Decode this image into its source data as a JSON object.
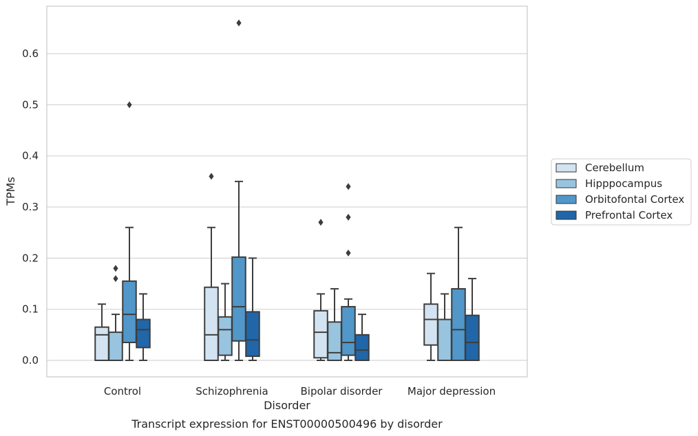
{
  "chart_data": {
    "type": "box",
    "caption": "Transcript expression for ENST00000500496 by disorder",
    "xlabel": "Disorder",
    "ylabel": "TPMs",
    "ylim": [
      -0.032,
      0.695
    ],
    "yticks": [
      "0.0",
      "0.1",
      "0.2",
      "0.3",
      "0.4",
      "0.5",
      "0.6"
    ],
    "grid": "horizontal",
    "legend_position": "right",
    "categories": [
      "Control",
      "Schizophrenia",
      "Bipolar disorder",
      "Major depression"
    ],
    "series": [
      {
        "name": "Cerebellum",
        "color": "#d3e3f1",
        "boxes": [
          {
            "whislo": 0.0,
            "q1": 0.0,
            "med": 0.05,
            "q3": 0.065,
            "whishi": 0.11,
            "fliers": []
          },
          {
            "whislo": 0.0,
            "q1": 0.0,
            "med": 0.05,
            "q3": 0.143,
            "whishi": 0.26,
            "fliers": [
              0.36
            ]
          },
          {
            "whislo": 0.0,
            "q1": 0.005,
            "med": 0.055,
            "q3": 0.097,
            "whishi": 0.13,
            "fliers": [
              0.27
            ]
          },
          {
            "whislo": 0.0,
            "q1": 0.03,
            "med": 0.08,
            "q3": 0.11,
            "whishi": 0.17,
            "fliers": []
          }
        ]
      },
      {
        "name": "Hipppocampus",
        "color": "#99c4df",
        "boxes": [
          {
            "whislo": 0.0,
            "q1": 0.0,
            "med": 0.0,
            "q3": 0.055,
            "whishi": 0.09,
            "fliers": [
              0.16,
              0.18
            ]
          },
          {
            "whislo": 0.0,
            "q1": 0.01,
            "med": 0.06,
            "q3": 0.085,
            "whishi": 0.15,
            "fliers": []
          },
          {
            "whislo": 0.0,
            "q1": 0.0,
            "med": 0.015,
            "q3": 0.075,
            "whishi": 0.14,
            "fliers": []
          },
          {
            "whislo": 0.0,
            "q1": 0.0,
            "med": 0.0,
            "q3": 0.08,
            "whishi": 0.13,
            "fliers": []
          }
        ]
      },
      {
        "name": "Orbitofontal Cortex",
        "color": "#5197c9",
        "boxes": [
          {
            "whislo": 0.0,
            "q1": 0.035,
            "med": 0.09,
            "q3": 0.155,
            "whishi": 0.26,
            "fliers": [
              0.5
            ]
          },
          {
            "whislo": 0.0,
            "q1": 0.038,
            "med": 0.105,
            "q3": 0.202,
            "whishi": 0.35,
            "fliers": [
              0.66
            ]
          },
          {
            "whislo": 0.0,
            "q1": 0.01,
            "med": 0.035,
            "q3": 0.105,
            "whishi": 0.12,
            "fliers": [
              0.21,
              0.28,
              0.34
            ]
          },
          {
            "whislo": 0.0,
            "q1": 0.0,
            "med": 0.06,
            "q3": 0.14,
            "whishi": 0.26,
            "fliers": []
          }
        ]
      },
      {
        "name": "Prefrontal Cortex",
        "color": "#2166a8",
        "boxes": [
          {
            "whislo": 0.0,
            "q1": 0.025,
            "med": 0.06,
            "q3": 0.08,
            "whishi": 0.13,
            "fliers": []
          },
          {
            "whislo": 0.0,
            "q1": 0.008,
            "med": 0.04,
            "q3": 0.095,
            "whishi": 0.2,
            "fliers": []
          },
          {
            "whislo": 0.0,
            "q1": 0.0,
            "med": 0.02,
            "q3": 0.05,
            "whishi": 0.09,
            "fliers": []
          },
          {
            "whislo": 0.0,
            "q1": 0.0,
            "med": 0.035,
            "q3": 0.088,
            "whishi": 0.16,
            "fliers": []
          }
        ]
      }
    ]
  }
}
